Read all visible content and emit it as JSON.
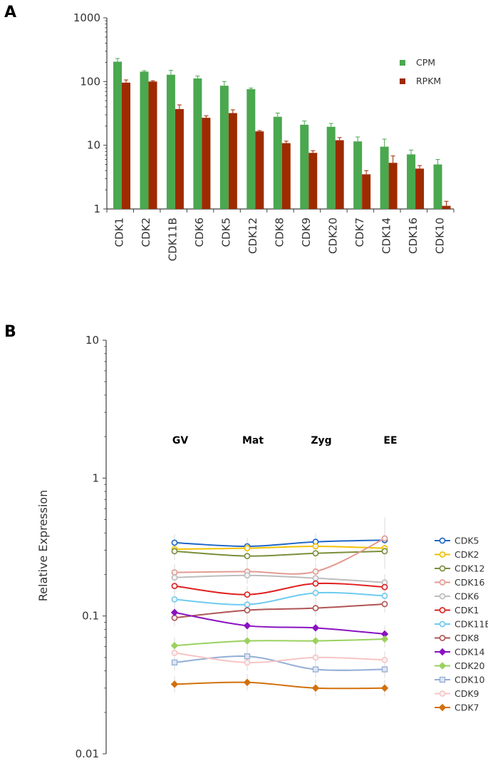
{
  "panels": {
    "a": "A",
    "b": "B"
  },
  "chart_data": [
    {
      "type": "bar",
      "yscale": "log",
      "ylim": [
        1,
        1000
      ],
      "yticks": [
        1,
        10,
        100,
        1000
      ],
      "categories": [
        "CDK1",
        "CDK2",
        "CDK11B",
        "CDK6",
        "CDK5",
        "CDK12",
        "CDK8",
        "CDK9",
        "CDK20",
        "CDK7",
        "CDK14",
        "CDK16",
        "CDK10"
      ],
      "series": [
        {
          "name": "CPM",
          "color": "#4aa84f",
          "values": [
            205,
            143,
            128,
            112,
            86,
            76,
            28,
            21,
            19.5,
            11.5,
            9.5,
            7.2,
            5.0
          ],
          "errors": [
            25,
            5,
            22,
            10,
            14,
            3,
            4,
            3,
            2.5,
            2,
            3,
            1.2,
            1.0
          ]
        },
        {
          "name": "RPKM",
          "color": "#9e2a00",
          "values": [
            96,
            100,
            37,
            27,
            32,
            16.5,
            10.8,
            7.6,
            12,
            3.5,
            5.3,
            4.3,
            1.12
          ],
          "errors": [
            10,
            3,
            6,
            2,
            4,
            0.5,
            0.8,
            0.6,
            1.2,
            0.5,
            1.5,
            0.5,
            0.2
          ]
        }
      ]
    },
    {
      "type": "line",
      "yscale": "log",
      "ylim": [
        0.01,
        10
      ],
      "yticks": [
        0.01,
        0.1,
        1,
        10
      ],
      "ylabel": "Relative Expression",
      "stages": [
        "GV",
        "Mat",
        "Zyg",
        "EE"
      ],
      "series": [
        {
          "name": "CDK5",
          "color": "#1f66c8",
          "marker": "circle",
          "values": [
            0.34,
            0.32,
            0.345,
            0.355
          ]
        },
        {
          "name": "CDK2",
          "color": "#f2c200",
          "marker": "circle",
          "values": [
            0.305,
            0.31,
            0.32,
            0.31
          ]
        },
        {
          "name": "CDK12",
          "color": "#7a8f3a",
          "marker": "circle",
          "values": [
            0.295,
            0.272,
            0.285,
            0.295
          ]
        },
        {
          "name": "CDK16",
          "color": "#e39a92",
          "marker": "circle",
          "values": [
            0.207,
            0.21,
            0.21,
            0.365
          ]
        },
        {
          "name": "CDK6",
          "color": "#bdbdbd",
          "marker": "circle",
          "values": [
            0.19,
            0.197,
            0.188,
            0.175
          ]
        },
        {
          "name": "CDK1",
          "color": "#e02020",
          "marker": "circle",
          "values": [
            0.165,
            0.143,
            0.172,
            0.162
          ]
        },
        {
          "name": "CDK11B",
          "color": "#6ecbef",
          "marker": "circle",
          "values": [
            0.132,
            0.121,
            0.147,
            0.14
          ]
        },
        {
          "name": "CDK8",
          "color": "#b05454",
          "marker": "circle",
          "values": [
            0.097,
            0.11,
            0.114,
            0.122
          ]
        },
        {
          "name": "CDK14",
          "color": "#8a12c0",
          "marker": "diamond",
          "values": [
            0.106,
            0.085,
            0.082,
            0.074
          ]
        },
        {
          "name": "CDK20",
          "color": "#9ad15e",
          "marker": "diamond",
          "values": [
            0.061,
            0.066,
            0.066,
            0.068
          ]
        },
        {
          "name": "CDK10",
          "color": "#93aed6",
          "marker": "square",
          "values": [
            0.046,
            0.051,
            0.041,
            0.041
          ]
        },
        {
          "name": "CDK9",
          "color": "#f8c4c4",
          "marker": "circle",
          "values": [
            0.054,
            0.046,
            0.05,
            0.048
          ]
        },
        {
          "name": "CDK7",
          "color": "#d3700c",
          "marker": "diamond",
          "values": [
            0.032,
            0.033,
            0.03,
            0.03
          ]
        }
      ]
    }
  ]
}
